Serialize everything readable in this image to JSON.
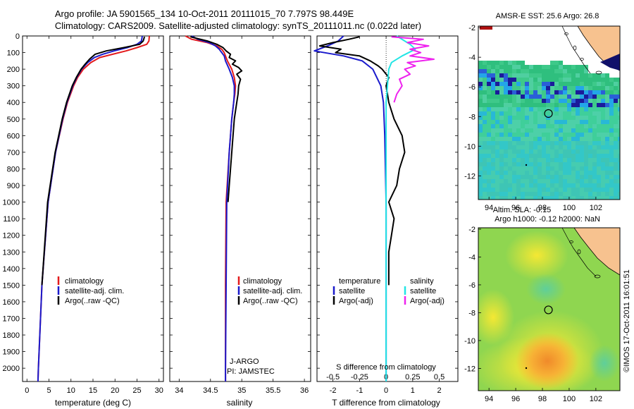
{
  "header": {
    "title_line1": "Argo profile: JA 5901565_134 10-Oct-2011 20111015_70 7.797S 98.449E",
    "title_line2": "Climatology: CARS2009. Satellite-adjusted climatology: synTS_20111011.nc (0.022d later)"
  },
  "side_label": "©IMOS 17-Oct-2011 16:01:51",
  "colors": {
    "red": "#e31a1c",
    "blue": "#1a1acc",
    "black": "#000000",
    "cyan": "#22e5e5",
    "magenta": "#ee22ee",
    "land": "#f7c28f"
  },
  "chart_data": [
    {
      "id": "temperature",
      "type": "line",
      "xlabel": "temperature (deg C)",
      "xlim": [
        -1,
        31
      ],
      "xticks": [
        0,
        5,
        10,
        15,
        20,
        25,
        30
      ],
      "ylim": [
        0,
        2080
      ],
      "yticks": [
        0,
        100,
        200,
        300,
        400,
        500,
        600,
        700,
        800,
        900,
        1000,
        1100,
        1200,
        1300,
        1400,
        1500,
        1600,
        1700,
        1800,
        1900,
        2000
      ],
      "legend": [
        "climatology",
        "satellite-adj. clim.",
        "Argo(..raw -QC)"
      ],
      "series": [
        {
          "name": "climatology",
          "color": "red",
          "depth": [
            0,
            30,
            50,
            70,
            90,
            110,
            130,
            160,
            200,
            250,
            300,
            400,
            500,
            700,
            1000,
            1500,
            2000,
            2080
          ],
          "values": [
            27.8,
            27.7,
            27.2,
            25,
            22.5,
            19.5,
            16.5,
            14.5,
            12.8,
            11.5,
            10.6,
            9.2,
            8.2,
            6.5,
            4.8,
            3.4,
            2.6,
            2.5
          ]
        },
        {
          "name": "satellite-adj. clim.",
          "color": "blue",
          "depth": [
            0,
            30,
            50,
            70,
            90,
            110,
            130,
            160,
            200,
            250,
            300,
            400,
            500,
            700,
            1000,
            1500,
            2000,
            2080
          ],
          "values": [
            26.2,
            26,
            25,
            22.8,
            19.8,
            17.2,
            15.3,
            13.8,
            12.4,
            11.3,
            10.4,
            9.1,
            8.1,
            6.5,
            4.8,
            3.4,
            2.6,
            2.5
          ]
        },
        {
          "name": "Argo(..raw -QC)",
          "color": "black",
          "depth": [
            5,
            30,
            50,
            70,
            90,
            110,
            140,
            170,
            200,
            250,
            300,
            400,
            500,
            700,
            1000,
            1500
          ],
          "values": [
            26.7,
            26.4,
            25.6,
            22,
            18,
            15.5,
            14.2,
            13.2,
            12.3,
            11.2,
            10.3,
            9,
            8,
            6.4,
            4.7,
            3.4
          ]
        }
      ]
    },
    {
      "id": "salinity",
      "type": "line",
      "xlabel": "salinity",
      "xlim": [
        33.85,
        36.1
      ],
      "xticks": [
        34,
        34.5,
        35,
        35.5,
        36
      ],
      "xticklabels": [
        "34",
        "34.5",
        "35",
        "35.5",
        "36"
      ],
      "ylim": [
        0,
        2080
      ],
      "legend": [
        "climatology",
        "satellite-adj. clim.",
        "Argo(..raw -QC)"
      ],
      "annotations": [
        "J-ARGO",
        "PI: JAMSTEC"
      ],
      "series": [
        {
          "name": "climatology",
          "color": "red",
          "depth": [
            0,
            20,
            40,
            60,
            80,
            100,
            120,
            150,
            200,
            250,
            300,
            350,
            400,
            500,
            700,
            1000,
            1500,
            2000,
            2080
          ],
          "values": [
            34.1,
            34.2,
            34.45,
            34.6,
            34.68,
            34.72,
            34.74,
            34.77,
            34.84,
            34.88,
            34.9,
            34.89,
            34.87,
            34.84,
            34.8,
            34.75,
            34.74,
            34.74,
            34.74
          ]
        },
        {
          "name": "satellite-adj. clim.",
          "color": "blue",
          "depth": [
            0,
            20,
            40,
            60,
            80,
            100,
            120,
            150,
            200,
            250,
            300,
            350,
            400,
            500,
            700,
            1000,
            1500,
            2000,
            2080
          ],
          "values": [
            34.2,
            34.3,
            34.48,
            34.58,
            34.64,
            34.68,
            34.72,
            34.74,
            34.8,
            34.85,
            34.88,
            34.88,
            34.87,
            34.84,
            34.8,
            34.76,
            34.75,
            34.74,
            34.74
          ]
        },
        {
          "name": "Argo(..raw -QC)",
          "color": "black",
          "depth": [
            5,
            30,
            50,
            70,
            90,
            110,
            130,
            150,
            170,
            190,
            210,
            230,
            260,
            300,
            350,
            400,
            500,
            600,
            700,
            800,
            900,
            1000
          ],
          "values": [
            34.18,
            34.45,
            34.6,
            34.7,
            34.75,
            34.82,
            34.8,
            34.9,
            34.85,
            34.95,
            35,
            34.92,
            34.98,
            34.95,
            34.94,
            34.92,
            34.88,
            34.86,
            34.84,
            34.82,
            34.8,
            34.78
          ]
        }
      ]
    },
    {
      "id": "difference",
      "type": "line",
      "xlabel": "T difference from climatology",
      "top_axis_label": "S difference from climatology",
      "xlim": [
        -2.6,
        2.7
      ],
      "xticks": [
        -2,
        -1,
        0,
        1,
        2
      ],
      "top_ticks": [
        "-0.5",
        "-0.25",
        "0",
        "0.25",
        "0.5"
      ],
      "top_tick_values": [
        -2,
        -1,
        0,
        1,
        2
      ],
      "ylim": [
        0,
        2080
      ],
      "legend_titles": [
        "temperature",
        "salinity"
      ],
      "legend": [
        "satellite",
        "Argo(-adj)",
        "satellite",
        "Argo(-adj)"
      ],
      "series": [
        {
          "name": "T satellite",
          "color": "blue",
          "depth": [
            0,
            30,
            60,
            90,
            120,
            150,
            200,
            300,
            400,
            600,
            1000,
            1500,
            2000,
            2080
          ],
          "values": [
            -1.6,
            -1.8,
            -2.2,
            -2.7,
            -1.6,
            -0.9,
            -0.5,
            -0.2,
            -0.1,
            -0.05,
            0,
            0,
            0,
            0
          ]
        },
        {
          "name": "T Argo(-adj)",
          "color": "black",
          "depth": [
            5,
            20,
            40,
            60,
            80,
            100,
            120,
            150,
            180,
            200,
            250,
            300,
            400,
            500,
            600,
            700,
            800,
            900,
            1000,
            1100,
            1200,
            1300,
            1400,
            1500
          ],
          "values": [
            -1,
            -1.4,
            -2.0,
            -2.5,
            -1.7,
            -1.9,
            -1.0,
            -0.6,
            -0.3,
            -0.15,
            0.1,
            0,
            0.1,
            0.3,
            0.6,
            0.7,
            0.5,
            0.4,
            0.1,
            0.3,
            0.2,
            0.1,
            0.1,
            0.1
          ]
        },
        {
          "name": "S satellite",
          "color": "cyan",
          "depth": [
            0,
            30,
            50,
            80,
            120,
            160,
            200,
            300,
            400,
            600,
            1000,
            1500,
            2000,
            2080
          ],
          "values": [
            0.4,
            0.7,
            0.9,
            1.1,
            0.6,
            0.2,
            0.1,
            0.05,
            0,
            0,
            0,
            0,
            0,
            0
          ]
        },
        {
          "name": "S Argo(-adj)",
          "color": "magenta",
          "depth": [
            5,
            20,
            40,
            60,
            80,
            100,
            120,
            140,
            160,
            180,
            200,
            230,
            260,
            300,
            350,
            400
          ],
          "values": [
            0.2,
            1.4,
            0.8,
            1.6,
            0.9,
            1.3,
            0.9,
            1.8,
            0.8,
            1.1,
            0.7,
            0.9,
            0.5,
            0.6,
            0.4,
            0.3
          ]
        }
      ]
    },
    {
      "id": "sst_map",
      "type": "heatmap",
      "title": "AMSR-E SST: 25.6 Argo: 26.8",
      "xticks": [
        94,
        96,
        98,
        100,
        102
      ],
      "yticks": [
        -2,
        -4,
        -6,
        -8,
        -10,
        -12
      ],
      "xlim": [
        93.2,
        103.8
      ],
      "ylim": [
        -13.6,
        -1.9
      ],
      "argo_position": {
        "lon": 98.449,
        "lat": -7.797
      }
    },
    {
      "id": "sla_map",
      "type": "heatmap",
      "title": "Altim. SLA: -0.15",
      "subtitle": "Argo h1000: -0.12 h2000: NaN",
      "xticks": [
        94,
        96,
        98,
        100,
        102
      ],
      "yticks": [
        -2,
        -4,
        -6,
        -8,
        -10,
        -12
      ],
      "xlim": [
        93.2,
        103.8
      ],
      "ylim": [
        -13.6,
        -1.9
      ],
      "argo_position": {
        "lon": 98.449,
        "lat": -7.797
      }
    }
  ]
}
